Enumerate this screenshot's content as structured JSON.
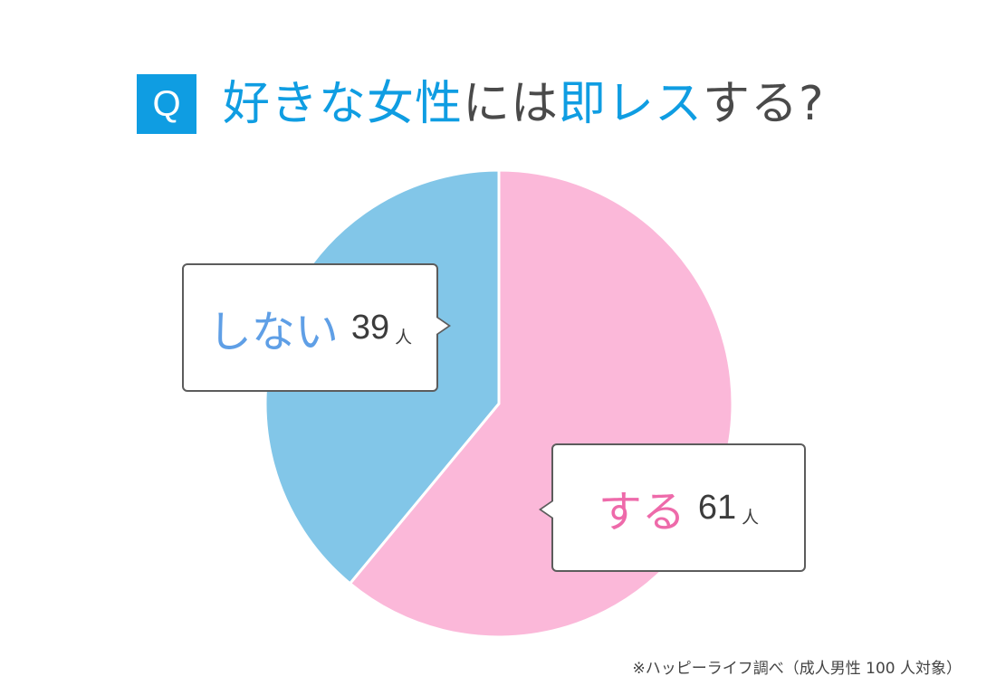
{
  "question": {
    "badge": "Q",
    "parts": [
      {
        "text": "好きな女性",
        "color": "#0f9de2"
      },
      {
        "text": "には",
        "color": "#4a4a4a"
      },
      {
        "text": "即レス",
        "color": "#0f9de2"
      },
      {
        "text": "する?",
        "color": "#4a4a4a"
      }
    ]
  },
  "chart_data": {
    "type": "pie",
    "title": "好きな女性には即レスする?",
    "unit": "人",
    "slices": [
      {
        "label": "する",
        "value": 61,
        "color": "#fbb8d9",
        "label_color": "#ee6aaa"
      },
      {
        "label": "しない",
        "value": 39,
        "color": "#82c6e8",
        "label_color": "#5f9fe6"
      }
    ]
  },
  "footnote": "※ハッピーライフ調べ（成人男性 100 人対象）",
  "colors": {
    "accent_blue": "#0f9de2",
    "text_dark": "#4a4a4a",
    "bubble_border": "#5c5c5c"
  }
}
